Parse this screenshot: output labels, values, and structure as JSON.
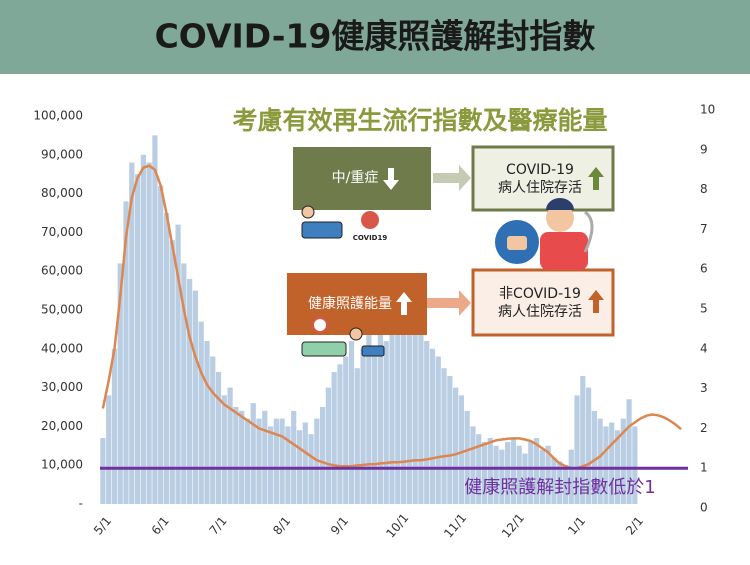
{
  "header": {
    "title": "COVID-19健康照護解封指數"
  },
  "chart_data": {
    "type": "combo",
    "categories": [
      "5/1",
      null,
      null,
      null,
      null,
      null,
      null,
      null,
      null,
      null,
      "6/1",
      null,
      null,
      null,
      null,
      null,
      null,
      null,
      null,
      null,
      "7/1",
      null,
      null,
      null,
      null,
      null,
      null,
      null,
      null,
      null,
      null,
      "8/1",
      null,
      null,
      null,
      null,
      null,
      null,
      null,
      null,
      null,
      "9/1",
      null,
      null,
      null,
      null,
      null,
      null,
      null,
      null,
      null,
      "10/1",
      null,
      null,
      null,
      null,
      null,
      null,
      null,
      null,
      null,
      "11/1",
      null,
      null,
      null,
      null,
      null,
      null,
      null,
      null,
      null,
      "12/1",
      null,
      null,
      null,
      null,
      null,
      null,
      null,
      null,
      null,
      null,
      "1/1",
      null,
      null,
      null,
      null,
      null,
      null,
      null,
      null,
      null,
      "2/1",
      null,
      null,
      null,
      null,
      null,
      null,
      null,
      null
    ],
    "series": [
      {
        "type": "bar",
        "color": "#b9cde3",
        "values": [
          17000,
          28000,
          40000,
          62000,
          78000,
          88000,
          85000,
          90000,
          88000,
          95000,
          82000,
          75000,
          68000,
          72000,
          62000,
          58000,
          55000,
          47000,
          42000,
          38000,
          34000,
          28000,
          30000,
          25000,
          24000,
          22000,
          26000,
          22000,
          24000,
          20000,
          22000,
          22000,
          20000,
          24000,
          19000,
          21000,
          18000,
          22000,
          25000,
          30000,
          34000,
          36000,
          38000,
          42000,
          35000,
          40000,
          45000,
          38000,
          46000,
          42000,
          48000,
          45000,
          50000,
          46000,
          48000,
          44000,
          42000,
          40000,
          38000,
          35000,
          33000,
          30000,
          28000,
          24000,
          20000,
          18000,
          16000,
          17000,
          15000,
          14000,
          16000,
          17000,
          15000,
          13000,
          16000,
          17000,
          14000,
          15000,
          12000,
          11000,
          10000,
          14000,
          28000,
          33000,
          30000,
          24000,
          22000,
          20000,
          21000,
          19000,
          22000,
          27000,
          20000,
          null,
          null,
          null,
          null,
          null,
          null,
          null,
          null
        ]
      },
      {
        "type": "line",
        "axis": "y2",
        "color": "#dd8650",
        "values": [
          2.5,
          3.2,
          4.0,
          5.3,
          6.8,
          7.8,
          8.3,
          8.55,
          8.6,
          8.5,
          8.1,
          7.4,
          6.6,
          5.8,
          5.0,
          4.3,
          3.8,
          3.4,
          3.1,
          2.9,
          2.75,
          2.6,
          2.5,
          2.4,
          2.3,
          2.2,
          2.1,
          2.0,
          1.95,
          1.9,
          1.85,
          1.8,
          1.7,
          1.6,
          1.5,
          1.4,
          1.3,
          1.2,
          1.15,
          1.1,
          1.07,
          1.05,
          1.05,
          1.05,
          1.07,
          1.08,
          1.1,
          1.1,
          1.12,
          1.13,
          1.15,
          1.15,
          1.16,
          1.18,
          1.2,
          1.2,
          1.22,
          1.25,
          1.28,
          1.3,
          1.32,
          1.35,
          1.4,
          1.45,
          1.5,
          1.55,
          1.6,
          1.65,
          1.7,
          1.72,
          1.74,
          1.75,
          1.75,
          1.72,
          1.68,
          1.6,
          1.5,
          1.4,
          1.25,
          1.12,
          1.05,
          1.0,
          1.0,
          1.05,
          1.1,
          1.2,
          1.3,
          1.45,
          1.6,
          1.75,
          1.9,
          2.05,
          2.15,
          2.25,
          2.32,
          2.35,
          2.33,
          2.28,
          2.2,
          2.1,
          1.98
        ]
      }
    ],
    "ylim": [
      0,
      100000
    ],
    "yticks": [
      {
        "value": 0,
        "label": "-"
      },
      {
        "value": 10000,
        "label": "10,000"
      },
      {
        "value": 20000,
        "label": "20,000"
      },
      {
        "value": 30000,
        "label": "30,000"
      },
      {
        "value": 40000,
        "label": "40,000"
      },
      {
        "value": 50000,
        "label": "50,000"
      },
      {
        "value": 60000,
        "label": "60,000"
      },
      {
        "value": 70000,
        "label": "70,000"
      },
      {
        "value": 80000,
        "label": "80,000"
      },
      {
        "value": 90000,
        "label": "90,000"
      },
      {
        "value": 100000,
        "label": "100,000"
      }
    ],
    "y2lim": [
      0,
      10
    ],
    "y2ticks": [
      0,
      1,
      2,
      3,
      4,
      5,
      6,
      7,
      8,
      9,
      10
    ],
    "threshold": {
      "value": 1,
      "axis": "y2",
      "color": "#7030a0",
      "label": "健康照護解封指數低於1"
    }
  },
  "diagram": {
    "subtitle": "考慮有效再生流行指數及醫療能量",
    "severe": "中/重症",
    "covid_survival": [
      "COVID-19",
      "病人住院存活"
    ],
    "capacity": "健康照護能量",
    "noncovid_survival": [
      "非COVID-19",
      "病人住院存活"
    ],
    "virus_label": "COVID19"
  }
}
